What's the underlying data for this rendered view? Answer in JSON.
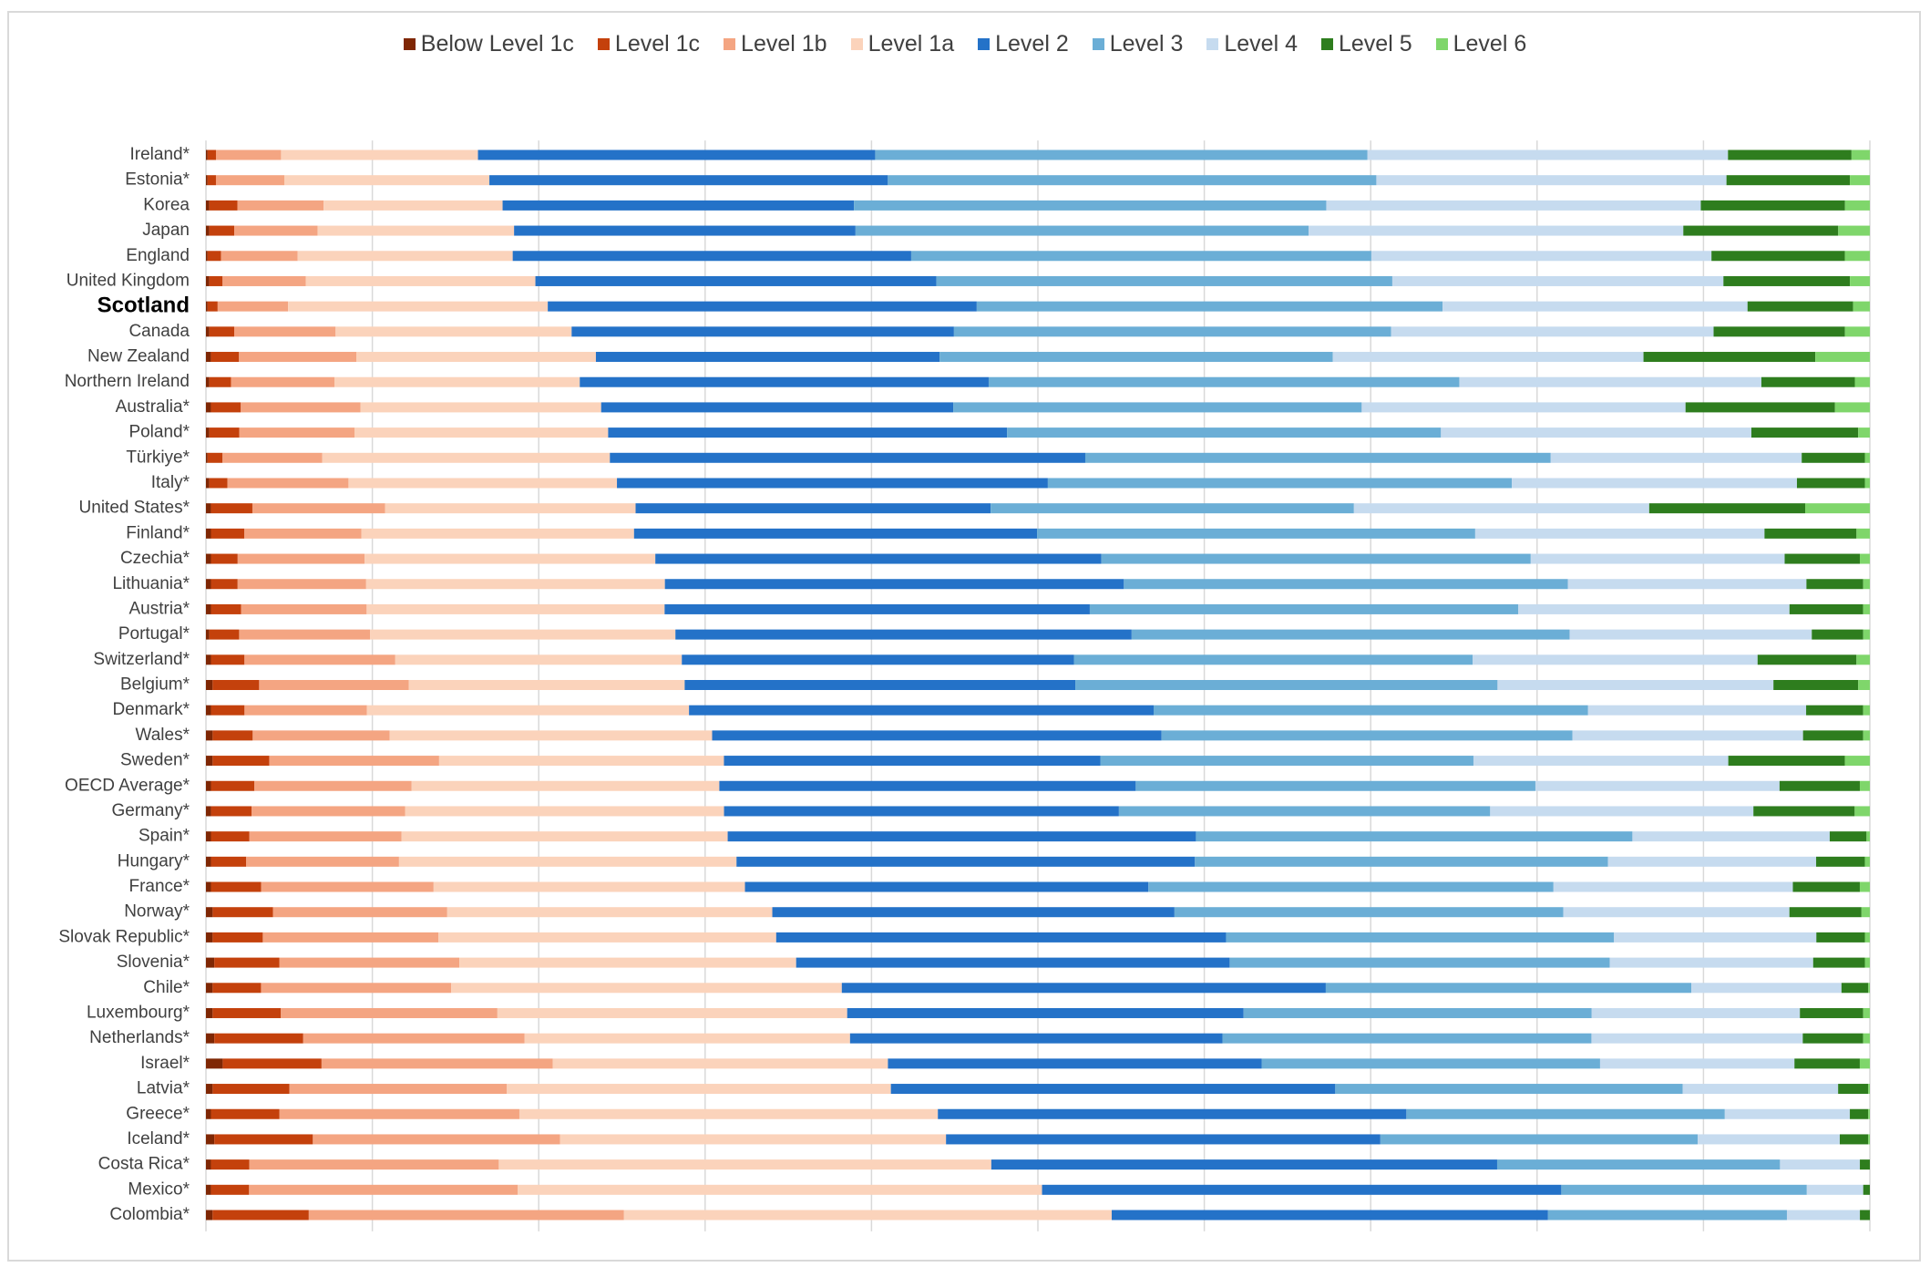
{
  "chart_data": {
    "type": "bar",
    "orientation": "horizontal",
    "stacked": true,
    "normalized": true,
    "legend_position": "top",
    "grid": true,
    "xlim": [
      0,
      100
    ],
    "title": "",
    "xlabel": "",
    "ylabel": "",
    "highlight_category": "Scotland",
    "categories": [
      "Ireland*",
      "Estonia*",
      "Korea",
      "Japan",
      "England",
      "United Kingdom",
      "Scotland",
      "Canada",
      "New Zealand",
      "Northern Ireland",
      "Australia*",
      "Poland*",
      "Türkiye*",
      "Italy*",
      "United States*",
      "Finland*",
      "Czechia*",
      "Lithuania*",
      "Austria*",
      "Portugal*",
      "Switzerland*",
      "Belgium*",
      "Denmark*",
      "Wales*",
      "Sweden*",
      "OECD Average*",
      "Germany*",
      "Spain*",
      "Hungary*",
      "France*",
      "Norway*",
      "Slovak Republic*",
      "Slovenia*",
      "Chile*",
      "Luxembourg*",
      "Netherlands*",
      "Israel*",
      "Latvia*",
      "Greece*",
      "Iceland*",
      "Costa Rica*",
      "Mexico*",
      "Colombia*"
    ],
    "series": [
      {
        "name": "Below Level 1c",
        "color": "#7f2704",
        "values": [
          0.1,
          0.1,
          0.2,
          0.2,
          0.1,
          0.2,
          0.1,
          0.2,
          0.3,
          0.2,
          0.3,
          0.2,
          0.1,
          0.2,
          0.3,
          0.3,
          0.3,
          0.3,
          0.3,
          0.2,
          0.3,
          0.4,
          0.3,
          0.4,
          0.4,
          0.3,
          0.3,
          0.3,
          0.3,
          0.3,
          0.4,
          0.4,
          0.5,
          0.4,
          0.4,
          0.5,
          1.0,
          0.4,
          0.3,
          0.5,
          0.3,
          0.3,
          0.4
        ]
      },
      {
        "name": "Level 1c",
        "color": "#c4410c",
        "values": [
          0.5,
          0.5,
          1.7,
          1.5,
          0.8,
          0.8,
          0.6,
          1.5,
          1.7,
          1.3,
          1.8,
          1.8,
          0.9,
          1.1,
          2.5,
          2.0,
          1.6,
          1.6,
          1.8,
          1.8,
          2.0,
          2.8,
          2.0,
          2.4,
          3.4,
          2.6,
          2.4,
          2.3,
          2.1,
          3.0,
          3.6,
          3.0,
          3.9,
          2.9,
          4.1,
          5.3,
          5.9,
          4.6,
          4.1,
          5.9,
          2.3,
          2.3,
          5.8
        ]
      },
      {
        "name": "Level 1b",
        "color": "#f4a582",
        "values": [
          3.9,
          4.1,
          5.2,
          5.0,
          4.6,
          5.0,
          4.2,
          6.1,
          7.1,
          6.2,
          7.2,
          6.9,
          6.0,
          7.3,
          8.0,
          7.0,
          7.6,
          7.7,
          7.5,
          7.9,
          9.0,
          9.0,
          7.3,
          8.2,
          10.2,
          9.4,
          9.1,
          9.1,
          9.1,
          10.3,
          10.4,
          10.5,
          10.8,
          11.4,
          13.0,
          13.2,
          13.8,
          13.0,
          14.4,
          14.8,
          15.0,
          16.2,
          19.0
        ]
      },
      {
        "name": "Level 1a",
        "color": "#fbd3bb",
        "values": [
          11.8,
          12.3,
          10.8,
          11.8,
          12.9,
          13.8,
          15.5,
          14.2,
          14.5,
          14.7,
          14.5,
          15.2,
          17.3,
          16.2,
          15.1,
          16.3,
          17.4,
          17.9,
          17.8,
          18.4,
          17.1,
          16.6,
          19.2,
          19.3,
          17.1,
          18.4,
          18.9,
          19.5,
          20.1,
          18.6,
          19.4,
          20.2,
          20.2,
          23.4,
          21.0,
          19.4,
          20.0,
          23.0,
          25.1,
          23.1,
          29.6,
          31.6,
          29.4
        ]
      },
      {
        "name": "Level 2",
        "color": "#2472c8",
        "values": [
          23.8,
          23.9,
          21.2,
          20.5,
          23.9,
          24.1,
          25.6,
          23.0,
          20.8,
          24.5,
          21.2,
          23.9,
          28.6,
          26.0,
          21.4,
          24.1,
          26.7,
          27.5,
          25.4,
          27.5,
          23.4,
          23.5,
          27.7,
          26.9,
          22.6,
          24.9,
          23.4,
          28.0,
          27.3,
          24.1,
          24.0,
          26.9,
          26.0,
          29.0,
          23.8,
          22.2,
          22.3,
          26.6,
          28.1,
          26.0,
          30.4,
          31.3,
          26.3
        ]
      },
      {
        "name": "Level 3",
        "color": "#6baed6",
        "values": [
          29.5,
          29.3,
          28.5,
          27.2,
          27.6,
          27.4,
          27.8,
          26.3,
          23.8,
          28.2,
          24.6,
          26.0,
          28.0,
          28.0,
          21.9,
          26.2,
          25.7,
          26.6,
          25.6,
          26.4,
          23.8,
          25.4,
          25.9,
          24.6,
          22.4,
          23.9,
          22.0,
          26.1,
          24.6,
          24.2,
          23.2,
          23.2,
          22.8,
          21.9,
          20.9,
          22.0,
          20.2,
          20.8,
          19.1,
          19.0,
          17.0,
          14.8,
          14.4
        ]
      },
      {
        "name": "Level 4",
        "color": "#c6dbef",
        "values": [
          21.6,
          21.0,
          22.6,
          22.5,
          20.4,
          19.9,
          18.2,
          19.4,
          18.8,
          18.1,
          19.5,
          18.6,
          15.1,
          17.2,
          17.8,
          17.3,
          15.2,
          14.3,
          16.2,
          14.6,
          17.0,
          16.6,
          13.0,
          13.8,
          15.3,
          14.6,
          15.6,
          11.8,
          12.4,
          14.3,
          13.5,
          12.1,
          12.2,
          9.0,
          12.5,
          12.6,
          11.6,
          9.3,
          7.5,
          8.5,
          4.8,
          3.4,
          4.4
        ]
      },
      {
        "name": "Level 5",
        "color": "#2e7d1e",
        "values": [
          7.4,
          7.4,
          8.7,
          9.3,
          8.0,
          7.6,
          6.3,
          7.9,
          10.4,
          5.6,
          9.0,
          6.4,
          3.8,
          4.1,
          9.4,
          5.5,
          4.5,
          3.4,
          4.4,
          3.1,
          5.9,
          5.1,
          3.4,
          3.6,
          7.0,
          4.8,
          6.0,
          2.2,
          2.9,
          4.0,
          4.3,
          2.9,
          3.1,
          1.6,
          3.8,
          3.6,
          3.9,
          1.8,
          1.1,
          1.7,
          0.6,
          0.4,
          0.6
        ]
      },
      {
        "name": "Level 6",
        "color": "#7fd66b",
        "values": [
          1.1,
          1.2,
          1.5,
          1.9,
          1.5,
          1.2,
          1.0,
          1.5,
          3.3,
          0.9,
          2.1,
          0.7,
          0.3,
          0.3,
          3.9,
          0.8,
          0.6,
          0.4,
          0.4,
          0.4,
          0.8,
          0.7,
          0.4,
          0.4,
          1.5,
          0.6,
          0.9,
          0.2,
          0.3,
          0.6,
          0.5,
          0.3,
          0.3,
          0.1,
          0.4,
          0.4,
          0.6,
          0.1,
          0.1,
          0.1,
          0.0,
          0.0,
          0.0
        ]
      }
    ]
  }
}
